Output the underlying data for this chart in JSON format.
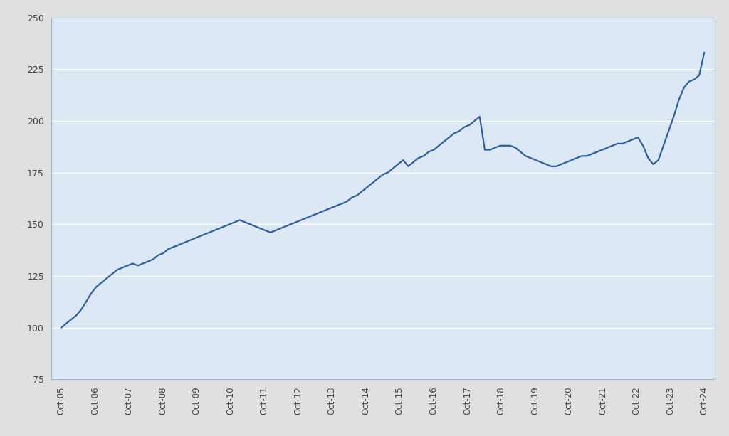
{
  "title": "",
  "x_labels": [
    "Oct-05",
    "Oct-06",
    "Oct-07",
    "Oct-08",
    "Oct-09",
    "Oct-10",
    "Oct-11",
    "Oct-12",
    "Oct-13",
    "Oct-14",
    "Oct-15",
    "Oct-16",
    "Oct-17",
    "Oct-18",
    "Oct-19",
    "Oct-20",
    "Oct-21",
    "Oct-22",
    "Oct-23",
    "Oct-24"
  ],
  "ylim": [
    75,
    250
  ],
  "yticks": [
    75,
    100,
    125,
    150,
    175,
    200,
    225,
    250
  ],
  "line_color": "#2E5FA3",
  "line_width": 1.6,
  "plot_bg_color": "#dce9f5",
  "outer_bg_color": "#e0e0e0",
  "grid_color": "#ffffff",
  "border_color": "#9ab8d0",
  "y_values": [
    100,
    102,
    104,
    106,
    109,
    113,
    117,
    120,
    122,
    124,
    126,
    128,
    129,
    130,
    131,
    130,
    131,
    132,
    133,
    135,
    136,
    138,
    139,
    140,
    141,
    142,
    143,
    144,
    145,
    146,
    147,
    148,
    149,
    150,
    151,
    152,
    151,
    150,
    149,
    148,
    147,
    146,
    147,
    148,
    149,
    150,
    151,
    152,
    153,
    154,
    155,
    156,
    157,
    158,
    159,
    160,
    161,
    163,
    164,
    166,
    168,
    170,
    172,
    174,
    175,
    177,
    179,
    181,
    178,
    180,
    182,
    183,
    185,
    186,
    188,
    190,
    192,
    194,
    195,
    197,
    198,
    200,
    202,
    186,
    186,
    187,
    188,
    188,
    188,
    187,
    185,
    183,
    182,
    181,
    180,
    179,
    178,
    178,
    179,
    180,
    181,
    182,
    183,
    183,
    184,
    185,
    186,
    187,
    188,
    189,
    189,
    190,
    191,
    192,
    188,
    182,
    179,
    181,
    188,
    195,
    202,
    210,
    216,
    219,
    220,
    222,
    233
  ]
}
